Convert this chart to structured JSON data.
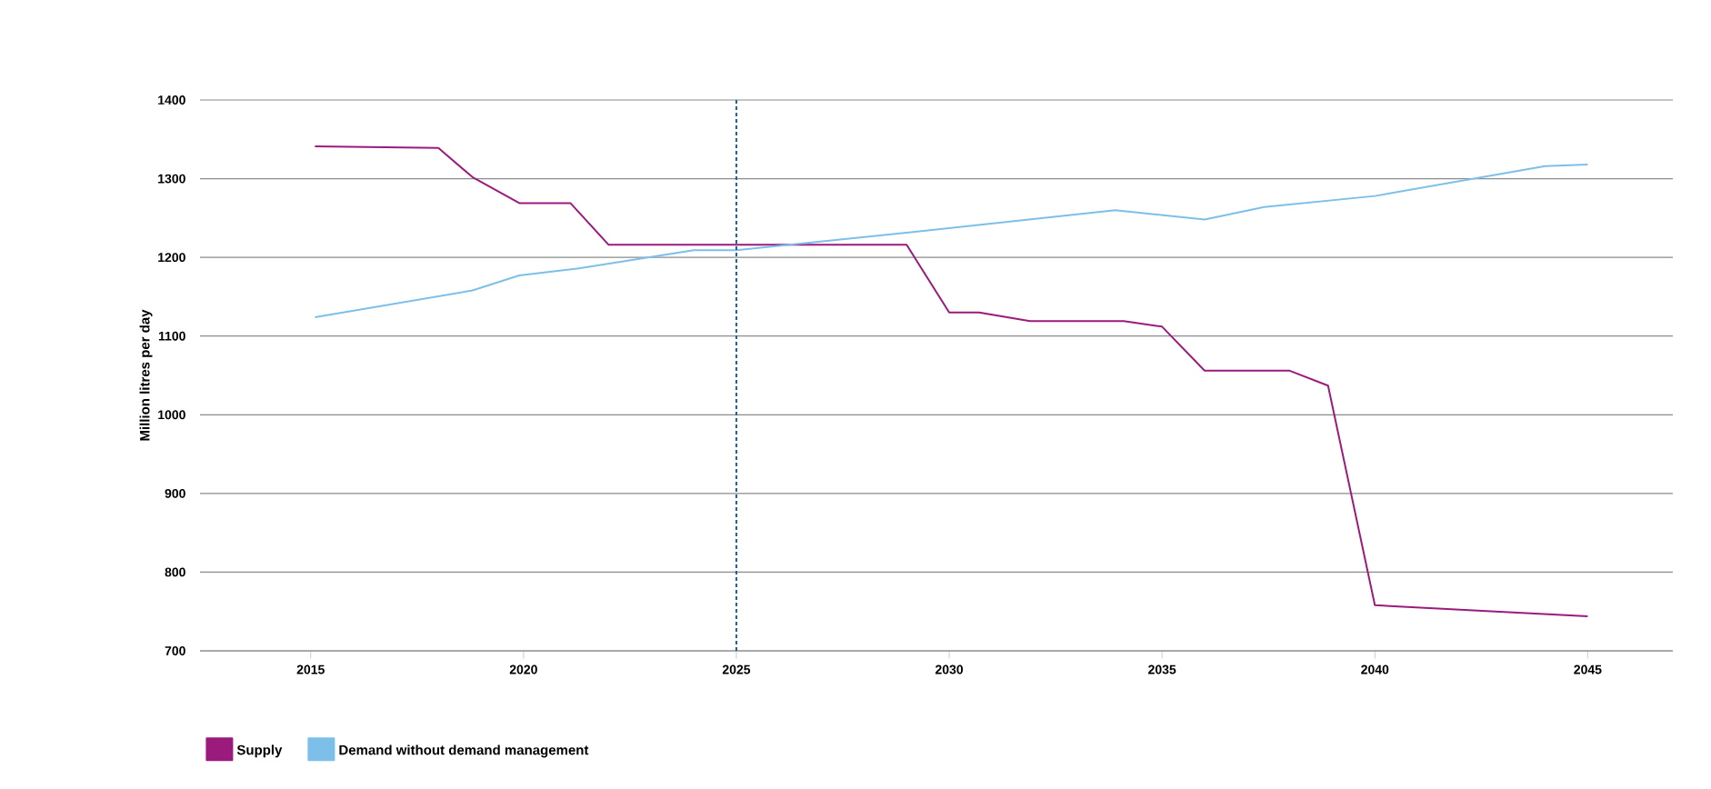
{
  "chart_data": {
    "type": "line",
    "ylabel": "Million litres per day",
    "xlim": [
      2012.4,
      2047
    ],
    "ylim": [
      700,
      1400
    ],
    "xticks": [
      2015,
      2020,
      2025,
      2030,
      2035,
      2040,
      2045
    ],
    "yticks": [
      700,
      800,
      900,
      1000,
      1100,
      1200,
      1300,
      1400
    ],
    "grid": "y",
    "legend": "bottom left",
    "marker": "none",
    "line_style": "solid",
    "ref_lines": [
      {
        "axis": "x",
        "value": 2025,
        "color": "#1f5f9a",
        "line_style": "dotted"
      }
    ],
    "series": [
      {
        "name": "Supply",
        "color": "#9b1b7d",
        "x": [
          2015.1,
          2018,
          2018.8,
          2019.9,
          2021.1,
          2022,
          2029,
          2030,
          2030.7,
          2031.9,
          2034.1,
          2035,
          2036,
          2038,
          2038.9,
          2040,
          2045
        ],
        "values": [
          1341,
          1339,
          1302,
          1269,
          1269,
          1216,
          1216,
          1130,
          1130,
          1119,
          1119,
          1112,
          1056,
          1056,
          1037,
          758,
          744
        ]
      },
      {
        "name": "Demand without demand management",
        "color": "#7cc0ea",
        "x": [
          2015.1,
          2018.8,
          2019.9,
          2021.3,
          2024,
          2025,
          2029.1,
          2033.9,
          2036,
          2037.4,
          2040,
          2044,
          2045
        ],
        "values": [
          1124,
          1158,
          1177,
          1186,
          1209,
          1209,
          1232,
          1260,
          1248,
          1264,
          1278,
          1316,
          1318
        ]
      }
    ]
  }
}
